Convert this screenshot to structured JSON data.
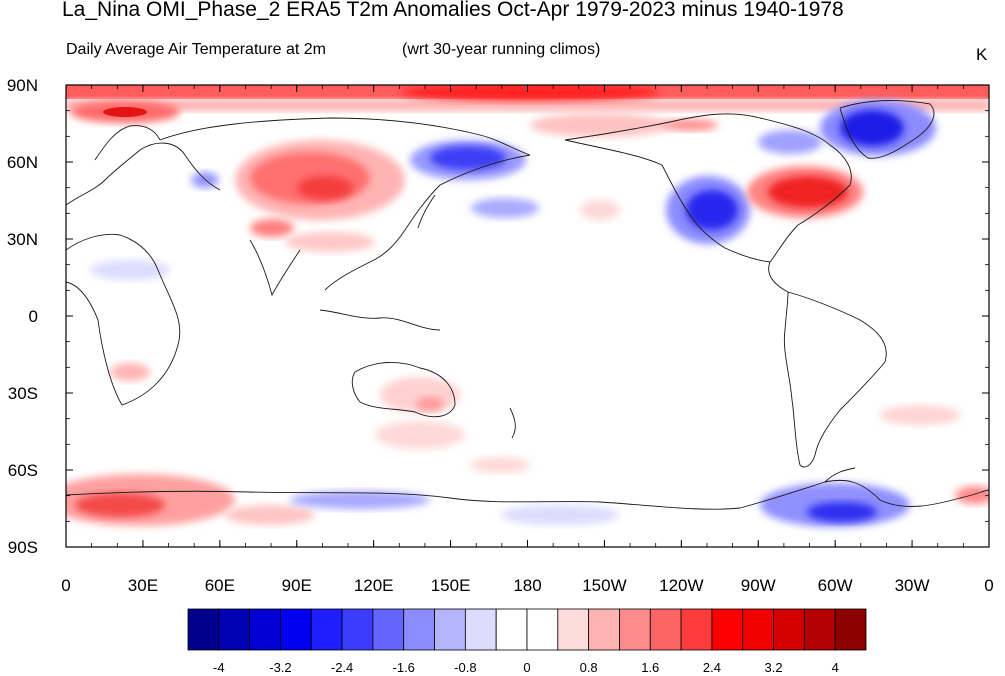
{
  "title": "La_Nina OMI_Phase_2 ERA5 T2m Anomalies Oct-Apr 1979-2023 minus 1940-1978",
  "subtitle_left": "Daily Average Air Temperature at 2m",
  "subtitle_right": "(wrt 30-year running climos)",
  "units": "K",
  "lat_labels": [
    "90N",
    "60N",
    "30N",
    "0",
    "30S",
    "60S",
    "90S"
  ],
  "lon_labels": [
    "0",
    "30E",
    "60E",
    "90E",
    "120E",
    "150E",
    "180",
    "150W",
    "120W",
    "90W",
    "60W",
    "30W",
    "0"
  ],
  "colorbar": {
    "colors": [
      "#00008c",
      "#0000b4",
      "#0000d2",
      "#0000f0",
      "#1e1eff",
      "#3c3cff",
      "#6464ff",
      "#8c8cff",
      "#b4b4ff",
      "#dcdcff",
      "#ffffff",
      "#ffffff",
      "#ffdcdc",
      "#ffb4b4",
      "#ff8c8c",
      "#ff6464",
      "#ff3c3c",
      "#ff0000",
      "#f00000",
      "#d20000",
      "#b40000",
      "#8c0000"
    ],
    "labels": [
      "-4",
      "-3.2",
      "-2.4",
      "-1.6",
      "-0.8",
      "0",
      "0.8",
      "1.6",
      "2.4",
      "3.2",
      "4"
    ]
  },
  "anomalies": [
    {
      "region": "Arctic band",
      "sign": "warm",
      "level": 3
    },
    {
      "region": "Northern Europe",
      "sign": "warm",
      "level": 3
    },
    {
      "region": "Central Asia / Siberia",
      "sign": "warm",
      "level": 3
    },
    {
      "region": "East Siberia / Kamchatka",
      "sign": "cold",
      "level": 4
    },
    {
      "region": "Western North America",
      "sign": "cold",
      "level": 4
    },
    {
      "region": "Eastern North America",
      "sign": "warm",
      "level": 4
    },
    {
      "region": "Greenland",
      "sign": "cold",
      "level": 4
    },
    {
      "region": "Southern Ocean (Africa sector)",
      "sign": "warm",
      "level": 3
    },
    {
      "region": "West Antarctica",
      "sign": "cold",
      "level": 3
    },
    {
      "region": "Australia",
      "sign": "warm",
      "level": 1
    }
  ]
}
